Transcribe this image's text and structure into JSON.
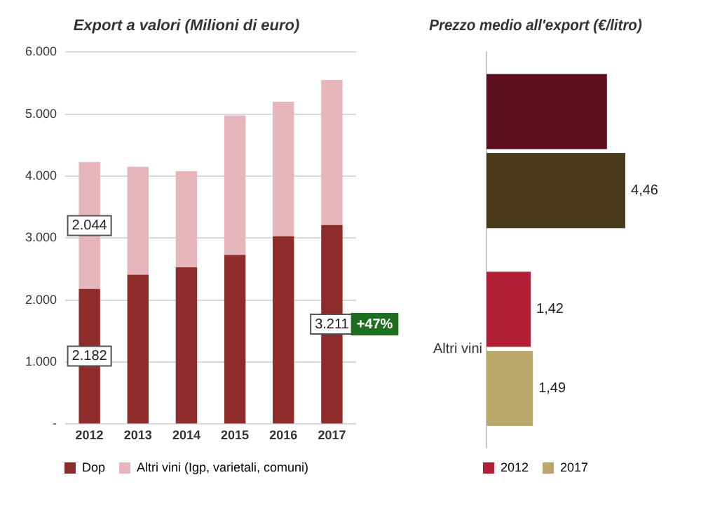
{
  "chart_data": [
    {
      "type": "bar",
      "title": "Export a valori (Milioni di euro)",
      "categories": [
        "2012",
        "2013",
        "2014",
        "2015",
        "2016",
        "2017"
      ],
      "stacked": true,
      "series": [
        {
          "name": "Dop",
          "color": "#8e2b2b",
          "values": [
            2182,
            2410,
            2530,
            2730,
            3030,
            3211
          ],
          "value_labels": [
            "2.182",
            null,
            null,
            null,
            null,
            "3.211"
          ]
        },
        {
          "name": "Altri vini (Igp, varietali, comuni)",
          "color": "#e6b6ba",
          "values": [
            2044,
            1740,
            1550,
            2250,
            2170,
            2340
          ],
          "value_labels": [
            "2.044",
            null,
            null,
            null,
            null,
            null
          ]
        }
      ],
      "ylim": [
        0,
        6000
      ],
      "yticks": [
        {
          "value": 0,
          "label": "-"
        },
        {
          "value": 1000,
          "label": "1.000"
        },
        {
          "value": 2000,
          "label": "2.000"
        },
        {
          "value": 3000,
          "label": "3.000"
        },
        {
          "value": 4000,
          "label": "4.000"
        },
        {
          "value": 5000,
          "label": "5.000"
        },
        {
          "value": 6000,
          "label": "6.000"
        }
      ],
      "grid": "y",
      "legend": "bottom",
      "annotations": [
        "+47%"
      ]
    },
    {
      "type": "bar",
      "title": "Prezzo medio all'export (€/litro)",
      "orientation": "horizontal",
      "categories": [
        null,
        "Altri vini"
      ],
      "series": [
        {
          "name": "2012",
          "color": "#b22038",
          "colors": [
            "#5c0f1e",
            "#b22038"
          ],
          "values": [
            3.87,
            1.42
          ],
          "value_labels": [
            null,
            "1,42"
          ]
        },
        {
          "name": "2017",
          "color": "#b8a86a",
          "colors": [
            "#4a3b1c",
            "#b8a86a"
          ],
          "values": [
            4.46,
            1.49
          ],
          "value_labels": [
            "4,46",
            "1,49"
          ]
        }
      ],
      "legend": "bottom"
    }
  ]
}
